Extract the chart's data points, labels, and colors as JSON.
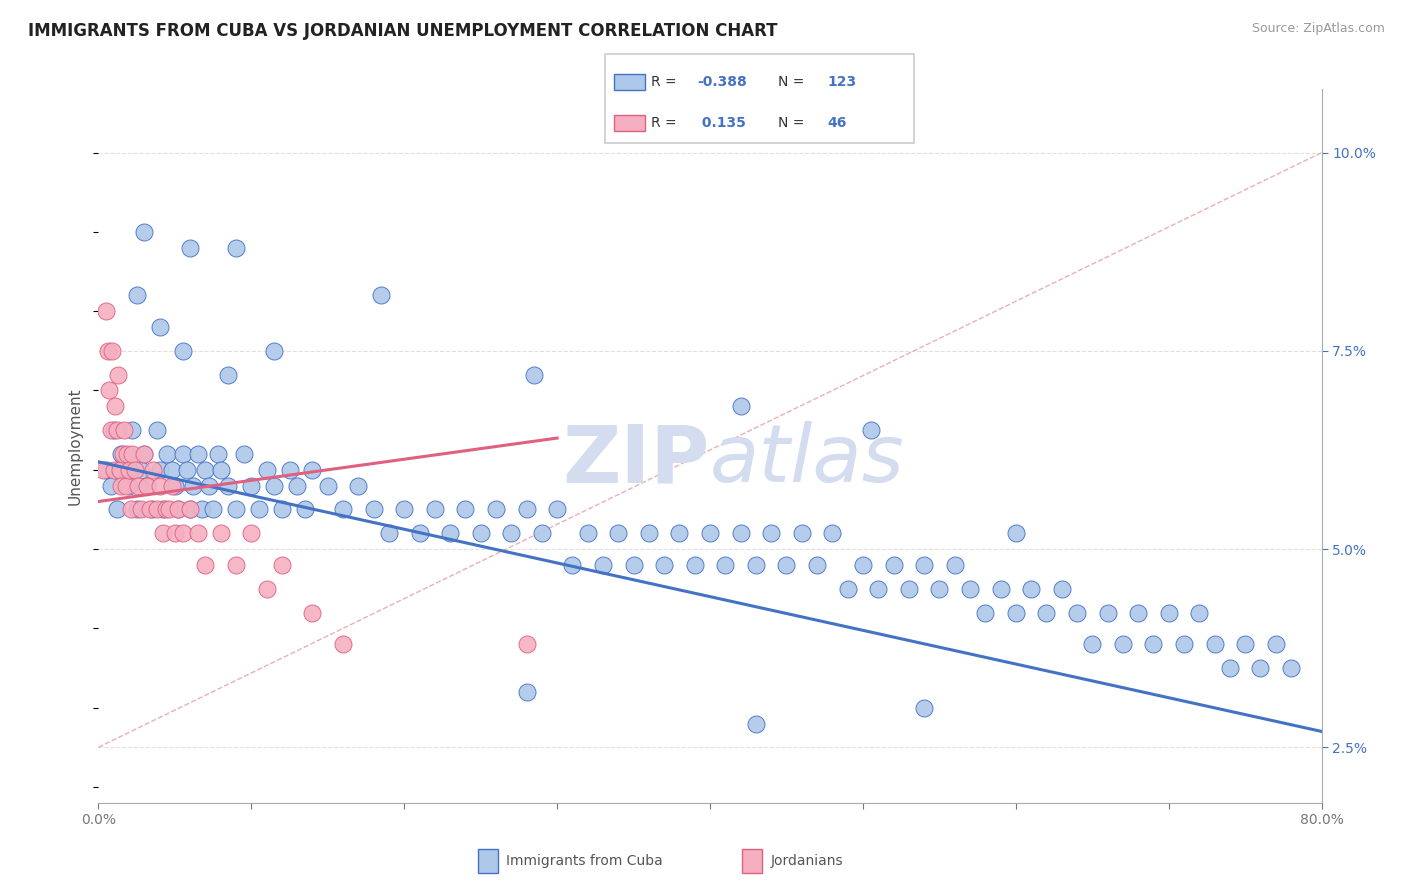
{
  "title": "IMMIGRANTS FROM CUBA VS JORDANIAN UNEMPLOYMENT CORRELATION CHART",
  "source": "Source: ZipAtlas.com",
  "ylabel": "Unemployment",
  "legend_label1": "Immigrants from Cuba",
  "legend_label2": "Jordanians",
  "r1": "-0.388",
  "n1": "123",
  "r2": "0.135",
  "n2": "46",
  "xlim": [
    0,
    0.8
  ],
  "ylim": [
    0.018,
    0.108
  ],
  "xticks": [
    0.0,
    0.1,
    0.2,
    0.3,
    0.4,
    0.5,
    0.6,
    0.7,
    0.8
  ],
  "xticklabels_show": [
    "0.0%",
    "",
    "",
    "",
    "",
    "",
    "",
    "",
    "80.0%"
  ],
  "yticks_right": [
    0.025,
    0.05,
    0.075,
    0.1
  ],
  "yticklabels_right": [
    "2.5%",
    "5.0%",
    "7.5%",
    "10.0%"
  ],
  "color_blue": "#adc8e8",
  "color_pink": "#f5afc0",
  "line_blue": "#4472c4",
  "line_pink": "#e06080",
  "line_dash_color": "#e8b0b8",
  "grid_color": "#e0e0e0",
  "title_color": "#222222",
  "watermark_color": "#d4ddf0",
  "blue_points_x": [
    0.005,
    0.008,
    0.01,
    0.012,
    0.015,
    0.017,
    0.02,
    0.022,
    0.025,
    0.028,
    0.03,
    0.032,
    0.035,
    0.038,
    0.04,
    0.042,
    0.045,
    0.048,
    0.05,
    0.052,
    0.055,
    0.058,
    0.06,
    0.062,
    0.065,
    0.068,
    0.07,
    0.072,
    0.075,
    0.078,
    0.08,
    0.085,
    0.09,
    0.095,
    0.1,
    0.105,
    0.11,
    0.115,
    0.12,
    0.125,
    0.13,
    0.135,
    0.14,
    0.15,
    0.16,
    0.17,
    0.18,
    0.19,
    0.2,
    0.21,
    0.22,
    0.23,
    0.24,
    0.25,
    0.26,
    0.27,
    0.28,
    0.29,
    0.3,
    0.31,
    0.32,
    0.33,
    0.34,
    0.35,
    0.36,
    0.37,
    0.38,
    0.39,
    0.4,
    0.41,
    0.42,
    0.43,
    0.44,
    0.45,
    0.46,
    0.47,
    0.48,
    0.49,
    0.5,
    0.51,
    0.52,
    0.53,
    0.54,
    0.55,
    0.56,
    0.57,
    0.58,
    0.59,
    0.6,
    0.61,
    0.62,
    0.63,
    0.64,
    0.65,
    0.66,
    0.67,
    0.68,
    0.69,
    0.7,
    0.71,
    0.72,
    0.73,
    0.74,
    0.75,
    0.76,
    0.77,
    0.78,
    0.025,
    0.04,
    0.055,
    0.085,
    0.115,
    0.185,
    0.285,
    0.42,
    0.505,
    0.6,
    0.03,
    0.06,
    0.09,
    0.28,
    0.43,
    0.54
  ],
  "blue_points_y": [
    0.06,
    0.058,
    0.065,
    0.055,
    0.062,
    0.06,
    0.058,
    0.065,
    0.055,
    0.06,
    0.062,
    0.058,
    0.055,
    0.065,
    0.06,
    0.055,
    0.062,
    0.06,
    0.058,
    0.055,
    0.062,
    0.06,
    0.055,
    0.058,
    0.062,
    0.055,
    0.06,
    0.058,
    0.055,
    0.062,
    0.06,
    0.058,
    0.055,
    0.062,
    0.058,
    0.055,
    0.06,
    0.058,
    0.055,
    0.06,
    0.058,
    0.055,
    0.06,
    0.058,
    0.055,
    0.058,
    0.055,
    0.052,
    0.055,
    0.052,
    0.055,
    0.052,
    0.055,
    0.052,
    0.055,
    0.052,
    0.055,
    0.052,
    0.055,
    0.048,
    0.052,
    0.048,
    0.052,
    0.048,
    0.052,
    0.048,
    0.052,
    0.048,
    0.052,
    0.048,
    0.052,
    0.048,
    0.052,
    0.048,
    0.052,
    0.048,
    0.052,
    0.045,
    0.048,
    0.045,
    0.048,
    0.045,
    0.048,
    0.045,
    0.048,
    0.045,
    0.042,
    0.045,
    0.042,
    0.045,
    0.042,
    0.045,
    0.042,
    0.038,
    0.042,
    0.038,
    0.042,
    0.038,
    0.042,
    0.038,
    0.042,
    0.038,
    0.035,
    0.038,
    0.035,
    0.038,
    0.035,
    0.082,
    0.078,
    0.075,
    0.072,
    0.075,
    0.082,
    0.072,
    0.068,
    0.065,
    0.052,
    0.09,
    0.088,
    0.088,
    0.032,
    0.028,
    0.03
  ],
  "pink_points_x": [
    0.003,
    0.005,
    0.006,
    0.007,
    0.008,
    0.009,
    0.01,
    0.011,
    0.012,
    0.013,
    0.014,
    0.015,
    0.016,
    0.017,
    0.018,
    0.019,
    0.02,
    0.021,
    0.022,
    0.024,
    0.026,
    0.028,
    0.03,
    0.032,
    0.034,
    0.036,
    0.038,
    0.04,
    0.042,
    0.044,
    0.046,
    0.048,
    0.05,
    0.052,
    0.055,
    0.06,
    0.065,
    0.07,
    0.08,
    0.09,
    0.1,
    0.11,
    0.12,
    0.14,
    0.16,
    0.28
  ],
  "pink_points_y": [
    0.06,
    0.08,
    0.075,
    0.07,
    0.065,
    0.075,
    0.06,
    0.068,
    0.065,
    0.072,
    0.06,
    0.058,
    0.062,
    0.065,
    0.058,
    0.062,
    0.06,
    0.055,
    0.062,
    0.06,
    0.058,
    0.055,
    0.062,
    0.058,
    0.055,
    0.06,
    0.055,
    0.058,
    0.052,
    0.055,
    0.055,
    0.058,
    0.052,
    0.055,
    0.052,
    0.055,
    0.052,
    0.048,
    0.052,
    0.048,
    0.052,
    0.045,
    0.048,
    0.042,
    0.038,
    0.038
  ],
  "blue_line_x": [
    0.0,
    0.8
  ],
  "blue_line_y": [
    0.061,
    0.027
  ],
  "pink_line_x": [
    0.0,
    0.3
  ],
  "pink_line_y": [
    0.056,
    0.064
  ],
  "dash_line_x": [
    0.0,
    0.8
  ],
  "dash_line_y": [
    0.025,
    0.1
  ]
}
